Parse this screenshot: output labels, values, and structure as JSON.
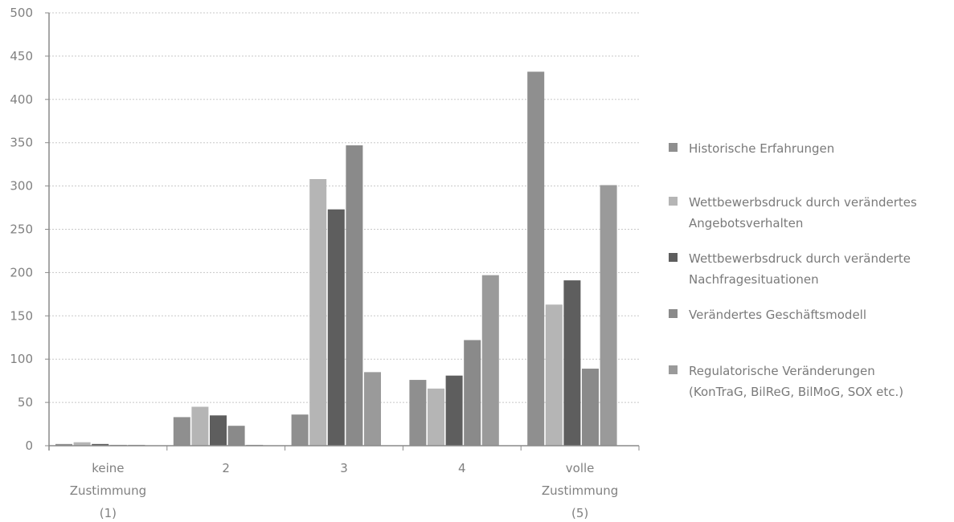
{
  "chart_data": {
    "type": "bar",
    "categories": [
      [
        "keine",
        "Zustimmung",
        "(1)"
      ],
      [
        "2"
      ],
      [
        "3"
      ],
      [
        "4"
      ],
      [
        "volle",
        "Zustimmung",
        "(5)"
      ]
    ],
    "series": [
      {
        "name": "Historische Erfahrungen",
        "legend_lines": [
          "Historische Erfahrungen"
        ],
        "color": "#8f8f8f",
        "values": [
          2,
          33,
          36,
          76,
          432
        ]
      },
      {
        "name": "Wettbewerbsdruck durch verändertes Angebotsverhalten",
        "legend_lines": [
          "Wettbewerbsdruck durch verändertes",
          "Angebotsverhalten"
        ],
        "color": "#b5b5b5",
        "values": [
          4,
          45,
          308,
          66,
          163
        ]
      },
      {
        "name": "Wettbewerbsdruck durch veränderte Nachfragesituationen",
        "legend_lines": [
          "Wettbewerbsdruck durch veränderte",
          "Nachfragesituationen"
        ],
        "color": "#5e5e5e",
        "values": [
          2,
          35,
          273,
          81,
          191
        ]
      },
      {
        "name": "Verändertes Geschäftsmodell",
        "legend_lines": [
          "Verändertes Geschäftsmodell"
        ],
        "color": "#8a8a8a",
        "values": [
          1,
          23,
          347,
          122,
          89
        ]
      },
      {
        "name": "Regulatorische Veränderungen (KonTraG, BilReG, BilMoG, SOX etc.)",
        "legend_lines": [
          "Regulatorische Veränderungen",
          "(KonTraG, BilReG, BilMoG, SOX etc.)"
        ],
        "color": "#9a9a9a",
        "values": [
          1,
          1,
          85,
          197,
          301
        ]
      }
    ],
    "ylim": [
      0,
      500
    ],
    "yticks": [
      0,
      50,
      100,
      150,
      200,
      250,
      300,
      350,
      400,
      450,
      500
    ],
    "grid": true,
    "legend_position": "right"
  }
}
